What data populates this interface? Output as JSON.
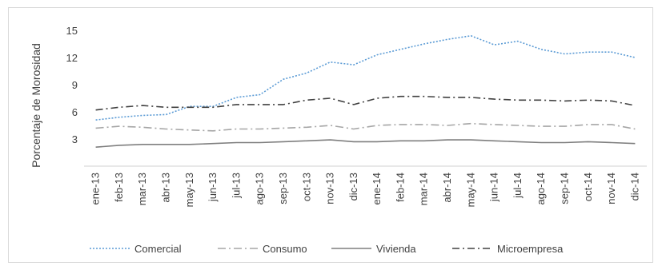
{
  "chart_data": {
    "type": "line",
    "title": "",
    "xlabel": "",
    "ylabel": "Porcentaje de Morosidad",
    "ylim": [
      0,
      15
    ],
    "yticks": [
      3,
      6,
      9,
      12,
      15
    ],
    "grid": false,
    "legend_position": "bottom",
    "x": [
      "ene-13",
      "feb-13",
      "mar-13",
      "abr-13",
      "may-13",
      "jun-13",
      "jul-13",
      "ago-13",
      "sep-13",
      "oct-13",
      "nov-13",
      "dic-13",
      "ene-14",
      "feb-14",
      "mar-14",
      "abr-14",
      "may-14",
      "jun-14",
      "jul-14",
      "ago-14",
      "sep-14",
      "oct-14",
      "nov-14",
      "dic-14"
    ],
    "series": [
      {
        "name": "Comercial",
        "color": "#5b9bd5",
        "dash": "2 2",
        "values": [
          5.1,
          5.4,
          5.6,
          5.7,
          6.6,
          6.6,
          7.6,
          7.9,
          9.6,
          10.3,
          11.5,
          11.2,
          12.3,
          12.9,
          13.5,
          14.0,
          14.4,
          13.4,
          13.8,
          12.9,
          12.4,
          12.6,
          12.6,
          12.0
        ]
      },
      {
        "name": "Consumo",
        "color": "#a6a6a6",
        "dash": "10 4 2 4",
        "values": [
          4.2,
          4.4,
          4.3,
          4.1,
          4.0,
          3.9,
          4.1,
          4.1,
          4.2,
          4.3,
          4.5,
          4.1,
          4.5,
          4.6,
          4.6,
          4.5,
          4.7,
          4.6,
          4.5,
          4.4,
          4.4,
          4.6,
          4.6,
          4.1
        ]
      },
      {
        "name": "Vivienda",
        "color": "#7f7f7f",
        "dash": "",
        "values": [
          2.1,
          2.3,
          2.4,
          2.4,
          2.4,
          2.5,
          2.6,
          2.6,
          2.7,
          2.8,
          2.9,
          2.7,
          2.7,
          2.8,
          2.8,
          2.9,
          2.9,
          2.8,
          2.7,
          2.6,
          2.6,
          2.7,
          2.6,
          2.5
        ]
      },
      {
        "name": "Microempresa",
        "color": "#404040",
        "dash": "9 4 2 4",
        "values": [
          6.2,
          6.5,
          6.7,
          6.5,
          6.5,
          6.5,
          6.8,
          6.8,
          6.8,
          7.3,
          7.5,
          6.8,
          7.5,
          7.7,
          7.7,
          7.6,
          7.6,
          7.4,
          7.3,
          7.3,
          7.2,
          7.3,
          7.2,
          6.7
        ]
      }
    ]
  }
}
